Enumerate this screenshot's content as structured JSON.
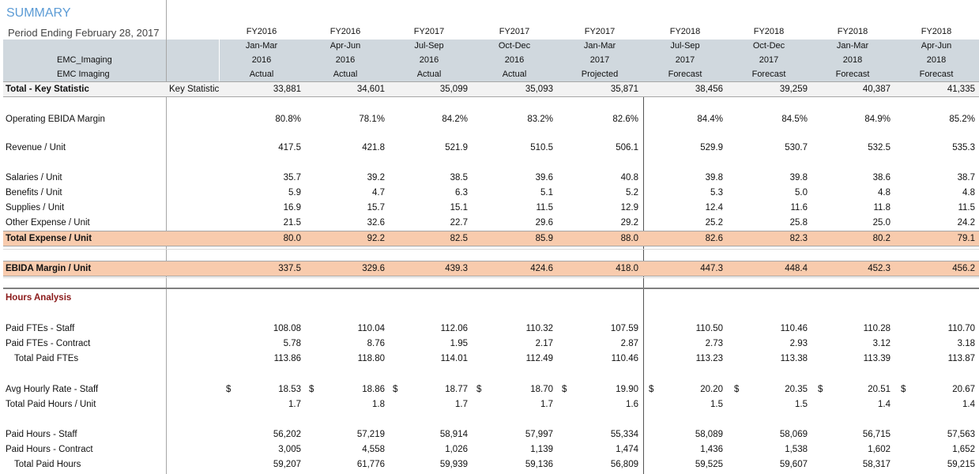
{
  "title": "SUMMARY",
  "period": "Period Ending February 28, 2017",
  "header_labels": [
    "EMC_Imaging",
    "EMC Imaging"
  ],
  "columns": [
    {
      "fy": "FY2016",
      "range": "Jan-Mar",
      "year": "2016",
      "type": "Actual"
    },
    {
      "fy": "FY2016",
      "range": "Apr-Jun",
      "year": "2016",
      "type": "Actual"
    },
    {
      "fy": "FY2017",
      "range": "Jul-Sep",
      "year": "2016",
      "type": "Actual"
    },
    {
      "fy": "FY2017",
      "range": "Oct-Dec",
      "year": "2016",
      "type": "Actual"
    },
    {
      "fy": "FY2017",
      "range": "Jan-Mar",
      "year": "2017",
      "type": "Projected"
    },
    {
      "fy": "FY2018",
      "range": "Jul-Sep",
      "year": "2017",
      "type": "Forecast"
    },
    {
      "fy": "FY2018",
      "range": "Oct-Dec",
      "year": "2017",
      "type": "Forecast"
    },
    {
      "fy": "FY2018",
      "range": "Jan-Mar",
      "year": "2018",
      "type": "Forecast"
    },
    {
      "fy": "FY2018",
      "range": "Apr-Jun",
      "year": "2018",
      "type": "Forecast"
    }
  ],
  "key_stat_col_label": "Key Statistic",
  "rows": [
    {
      "label": "Total - Key Statistic",
      "style": "bold",
      "band": "gray",
      "values": [
        "33,881",
        "34,601",
        "35,099",
        "35,093",
        "35,871",
        "38,456",
        "39,259",
        "40,387",
        "41,335"
      ]
    },
    {
      "label": "Operating EBIDA Margin",
      "values": [
        "80.8%",
        "78.1%",
        "84.2%",
        "83.2%",
        "82.6%",
        "84.4%",
        "84.5%",
        "84.9%",
        "85.2%"
      ]
    },
    {
      "label": "Revenue / Unit",
      "values": [
        "417.5",
        "421.8",
        "521.9",
        "510.5",
        "506.1",
        "529.9",
        "530.7",
        "532.5",
        "535.3"
      ]
    },
    {
      "label": "Salaries / Unit",
      "values": [
        "35.7",
        "39.2",
        "38.5",
        "39.6",
        "40.8",
        "39.8",
        "39.8",
        "38.6",
        "38.7"
      ]
    },
    {
      "label": "Benefits / Unit",
      "values": [
        "5.9",
        "4.7",
        "6.3",
        "5.1",
        "5.2",
        "5.3",
        "5.0",
        "4.8",
        "4.8"
      ]
    },
    {
      "label": "Supplies / Unit",
      "values": [
        "16.9",
        "15.7",
        "15.1",
        "11.5",
        "12.9",
        "12.4",
        "11.6",
        "11.8",
        "11.5"
      ]
    },
    {
      "label": "Other Expense / Unit",
      "values": [
        "21.5",
        "32.6",
        "22.7",
        "29.6",
        "29.2",
        "25.2",
        "25.8",
        "25.0",
        "24.2"
      ]
    },
    {
      "label": "Total Expense / Unit",
      "style": "bold",
      "band": "peach",
      "values": [
        "80.0",
        "92.2",
        "82.5",
        "85.9",
        "88.0",
        "82.6",
        "82.3",
        "80.2",
        "79.1"
      ]
    },
    {
      "label": "EBIDA Margin / Unit",
      "style": "bold",
      "band": "peach",
      "values": [
        "337.5",
        "329.6",
        "439.3",
        "424.6",
        "418.0",
        "447.3",
        "448.4",
        "452.3",
        "456.2"
      ]
    },
    {
      "label": "Hours Analysis",
      "style": "section",
      "values": []
    },
    {
      "label": "Paid FTEs - Staff",
      "values": [
        "108.08",
        "110.04",
        "112.06",
        "110.32",
        "107.59",
        "110.50",
        "110.46",
        "110.28",
        "110.70"
      ]
    },
    {
      "label": "Paid FTEs - Contract",
      "values": [
        "5.78",
        "8.76",
        "1.95",
        "2.17",
        "2.87",
        "2.73",
        "2.93",
        "3.12",
        "3.18"
      ]
    },
    {
      "label": "Total Paid FTEs",
      "style": "indent",
      "values": [
        "113.86",
        "118.80",
        "114.01",
        "112.49",
        "110.46",
        "113.23",
        "113.38",
        "113.39",
        "113.87"
      ]
    },
    {
      "label": "Avg Hourly Rate - Staff",
      "dollar": "$",
      "values": [
        "18.53",
        "18.86",
        "18.77",
        "18.70",
        "19.90",
        "20.20",
        "20.35",
        "20.51",
        "20.67"
      ]
    },
    {
      "label": "Total Paid Hours / Unit",
      "values": [
        "1.7",
        "1.8",
        "1.7",
        "1.7",
        "1.6",
        "1.5",
        "1.5",
        "1.4",
        "1.4"
      ]
    },
    {
      "label": "Paid Hours - Staff",
      "values": [
        "56,202",
        "57,219",
        "58,914",
        "57,997",
        "55,334",
        "58,089",
        "58,069",
        "56,715",
        "57,563"
      ]
    },
    {
      "label": "Paid Hours - Contract",
      "values": [
        "3,005",
        "4,558",
        "1,026",
        "1,139",
        "1,474",
        "1,436",
        "1,538",
        "1,602",
        "1,652"
      ]
    },
    {
      "label": "Total Paid Hours",
      "style": "indent",
      "values": [
        "59,207",
        "61,776",
        "59,939",
        "59,136",
        "56,809",
        "59,525",
        "59,607",
        "58,317",
        "59,215"
      ]
    }
  ]
}
